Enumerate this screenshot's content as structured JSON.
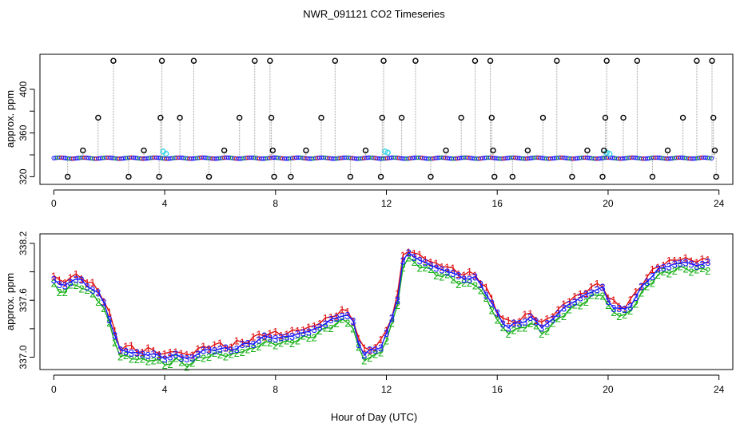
{
  "figure": {
    "title": "NWR_091121  CO2 Timeseries",
    "xlabel": "Hour of Day (UTC)"
  },
  "colors": {
    "axis": "#000000",
    "stem": "#9a9a9a",
    "blue": "#1a1aff",
    "green": "#18b018",
    "red": "#e01010",
    "cyan": "#40d8e8",
    "outlier": "#000000"
  },
  "chart_data": [
    {
      "type": "scatter",
      "panel": "top",
      "title": "",
      "xlabel": "",
      "ylabel": "approx. ppm",
      "xlim": [
        -0.5,
        24.5
      ],
      "ylim": [
        313,
        432
      ],
      "xticks": [
        0,
        4,
        8,
        12,
        16,
        20,
        24
      ],
      "yticks": [
        320,
        360,
        400
      ],
      "extra_yticks": [
        340,
        380
      ],
      "baseline": 337,
      "outliers": [
        {
          "x": 0.5,
          "y": 320
        },
        {
          "x": 1.05,
          "y": 344
        },
        {
          "x": 1.6,
          "y": 374
        },
        {
          "x": 2.15,
          "y": 426
        },
        {
          "x": 2.7,
          "y": 320
        },
        {
          "x": 3.25,
          "y": 344
        },
        {
          "x": 3.8,
          "y": 320
        },
        {
          "x": 3.85,
          "y": 374
        },
        {
          "x": 3.9,
          "y": 426
        },
        {
          "x": 4.55,
          "y": 374
        },
        {
          "x": 5.05,
          "y": 426
        },
        {
          "x": 5.6,
          "y": 320
        },
        {
          "x": 6.15,
          "y": 344
        },
        {
          "x": 6.7,
          "y": 374
        },
        {
          "x": 7.25,
          "y": 426
        },
        {
          "x": 7.8,
          "y": 426
        },
        {
          "x": 7.85,
          "y": 374
        },
        {
          "x": 7.9,
          "y": 344
        },
        {
          "x": 7.95,
          "y": 320
        },
        {
          "x": 8.55,
          "y": 320
        },
        {
          "x": 9.1,
          "y": 344
        },
        {
          "x": 9.65,
          "y": 374
        },
        {
          "x": 10.15,
          "y": 426
        },
        {
          "x": 10.7,
          "y": 320
        },
        {
          "x": 11.25,
          "y": 344
        },
        {
          "x": 11.8,
          "y": 320
        },
        {
          "x": 11.85,
          "y": 374
        },
        {
          "x": 11.9,
          "y": 426
        },
        {
          "x": 12.55,
          "y": 374
        },
        {
          "x": 13.05,
          "y": 426
        },
        {
          "x": 13.6,
          "y": 320
        },
        {
          "x": 14.15,
          "y": 344
        },
        {
          "x": 14.7,
          "y": 374
        },
        {
          "x": 15.2,
          "y": 426
        },
        {
          "x": 15.75,
          "y": 426
        },
        {
          "x": 15.8,
          "y": 374
        },
        {
          "x": 15.85,
          "y": 344
        },
        {
          "x": 15.9,
          "y": 320
        },
        {
          "x": 16.55,
          "y": 320
        },
        {
          "x": 17.1,
          "y": 344
        },
        {
          "x": 17.65,
          "y": 374
        },
        {
          "x": 18.15,
          "y": 426
        },
        {
          "x": 18.7,
          "y": 320
        },
        {
          "x": 19.25,
          "y": 344
        },
        {
          "x": 19.8,
          "y": 320
        },
        {
          "x": 19.85,
          "y": 344
        },
        {
          "x": 19.9,
          "y": 374
        },
        {
          "x": 19.95,
          "y": 426
        },
        {
          "x": 20.55,
          "y": 374
        },
        {
          "x": 21.05,
          "y": 426
        },
        {
          "x": 21.6,
          "y": 320
        },
        {
          "x": 22.15,
          "y": 344
        },
        {
          "x": 22.7,
          "y": 374
        },
        {
          "x": 23.2,
          "y": 426
        },
        {
          "x": 23.75,
          "y": 426
        },
        {
          "x": 23.8,
          "y": 374
        },
        {
          "x": 23.85,
          "y": 344
        },
        {
          "x": 23.9,
          "y": 320
        }
      ],
      "cyan_points": [
        {
          "x": 3.95,
          "y": 343
        },
        {
          "x": 4.05,
          "y": 341
        },
        {
          "x": 11.95,
          "y": 343
        },
        {
          "x": 12.05,
          "y": 342
        },
        {
          "x": 19.95,
          "y": 342
        },
        {
          "x": 20.05,
          "y": 341
        }
      ]
    },
    {
      "type": "line",
      "panel": "bottom",
      "title": "",
      "xlabel": "Hour of Day (UTC)",
      "ylabel": "approx. ppm",
      "xlim": [
        -0.5,
        24.5
      ],
      "ylim": [
        336.87,
        338.3
      ],
      "xticks": [
        0,
        4,
        8,
        12,
        16,
        20,
        24
      ],
      "yticks": [
        337.0,
        337.6,
        338.2
      ],
      "extra_yticks": [
        337.3,
        337.9
      ],
      "tick_labels": [
        "337.0",
        "337.6",
        "338.2"
      ],
      "series_labels": [
        "1",
        "2",
        "3"
      ],
      "profile": [
        [
          0.0,
          337.82
        ],
        [
          0.3,
          337.74
        ],
        [
          0.6,
          337.8
        ],
        [
          0.9,
          337.83
        ],
        [
          1.2,
          337.76
        ],
        [
          1.5,
          337.7
        ],
        [
          1.8,
          337.58
        ],
        [
          2.0,
          337.42
        ],
        [
          2.2,
          337.22
        ],
        [
          2.35,
          337.06
        ],
        [
          2.6,
          337.08
        ],
        [
          3.0,
          337.03
        ],
        [
          3.5,
          337.04
        ],
        [
          4.0,
          336.99
        ],
        [
          4.4,
          337.03
        ],
        [
          4.7,
          336.98
        ],
        [
          5.0,
          337.0
        ],
        [
          5.3,
          337.06
        ],
        [
          5.8,
          337.09
        ],
        [
          6.3,
          337.08
        ],
        [
          6.8,
          337.12
        ],
        [
          7.3,
          337.17
        ],
        [
          7.7,
          337.22
        ],
        [
          8.2,
          337.2
        ],
        [
          8.7,
          337.24
        ],
        [
          9.2,
          337.27
        ],
        [
          9.7,
          337.34
        ],
        [
          10.2,
          337.42
        ],
        [
          10.5,
          337.46
        ],
        [
          10.8,
          337.37
        ],
        [
          11.0,
          337.16
        ],
        [
          11.2,
          337.03
        ],
        [
          11.5,
          337.07
        ],
        [
          11.8,
          337.12
        ],
        [
          12.1,
          337.3
        ],
        [
          12.4,
          337.62
        ],
        [
          12.6,
          338.02
        ],
        [
          12.8,
          338.09
        ],
        [
          13.2,
          338.03
        ],
        [
          13.7,
          337.95
        ],
        [
          14.2,
          337.91
        ],
        [
          14.7,
          337.84
        ],
        [
          15.2,
          337.83
        ],
        [
          15.5,
          337.74
        ],
        [
          15.8,
          337.56
        ],
        [
          16.1,
          337.4
        ],
        [
          16.4,
          337.32
        ],
        [
          16.8,
          337.36
        ],
        [
          17.2,
          337.42
        ],
        [
          17.6,
          337.32
        ],
        [
          18.0,
          337.4
        ],
        [
          18.5,
          337.55
        ],
        [
          19.0,
          337.62
        ],
        [
          19.4,
          337.7
        ],
        [
          19.8,
          337.72
        ],
        [
          20.1,
          337.55
        ],
        [
          20.5,
          337.48
        ],
        [
          20.9,
          337.58
        ],
        [
          21.3,
          337.78
        ],
        [
          21.8,
          337.92
        ],
        [
          22.3,
          337.98
        ],
        [
          22.8,
          338.0
        ],
        [
          23.2,
          337.97
        ],
        [
          23.7,
          338.0
        ]
      ],
      "offsets": [
        0.04,
        -0.06,
        0.0
      ]
    }
  ]
}
